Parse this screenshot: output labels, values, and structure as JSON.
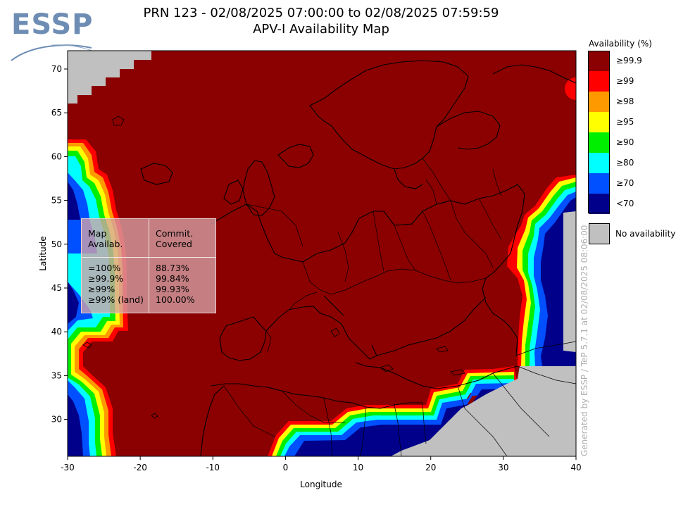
{
  "logo": {
    "text": "ESSP"
  },
  "header": {
    "title_line1": "PRN 123 - 02/08/2025 07:00:00 to 02/08/2025 07:59:59",
    "title_line2": "APV-I Availability Map"
  },
  "axes": {
    "x_label": "Longitude",
    "y_label": "Latitude",
    "x_ticks": [
      "-30",
      "-20",
      "-10",
      "0",
      "10",
      "20",
      "30",
      "40"
    ],
    "y_ticks": [
      "70",
      "65",
      "60",
      "55",
      "50",
      "45",
      "40",
      "35",
      "30"
    ]
  },
  "legend": {
    "title": "Availability (%)",
    "items": [
      {
        "label": "≥99.9",
        "color": "#8b0000"
      },
      {
        "label": "≥99",
        "color": "#ff0000"
      },
      {
        "label": "≥98",
        "color": "#ff9900"
      },
      {
        "label": "≥95",
        "color": "#ffff00"
      },
      {
        "label": "≥90",
        "color": "#00ee00"
      },
      {
        "label": "≥80",
        "color": "#00ffff"
      },
      {
        "label": "≥70",
        "color": "#0050ff"
      },
      {
        "label": "<70",
        "color": "#00008b"
      }
    ],
    "no_availability_label": "No availability",
    "no_availability_color": "#c0c0c0"
  },
  "stats_table": {
    "col1_header_line1": "Map",
    "col1_header_line2": "Availab.",
    "col2_header_line1": "Commit.",
    "col2_header_line2": "Covered",
    "rows": [
      {
        "map": "=100%",
        "covered": "88.73%"
      },
      {
        "map": "≥99.9%",
        "covered": "99.84%"
      },
      {
        "map": "≥99%",
        "covered": "99.93%"
      },
      {
        "map": "≥99% (land)",
        "covered": "100.00%"
      }
    ]
  },
  "footer": {
    "generated_text": "Generated by ESSP / TeP 5.7.1 at 02/08/2025 08:06:00"
  }
}
